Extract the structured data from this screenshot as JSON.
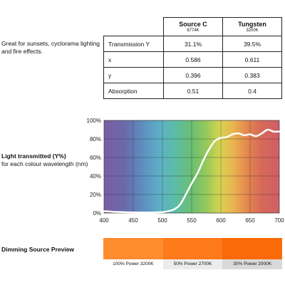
{
  "description": "Great for sunsets, cyclorama lighting and fire effects.",
  "spec_table": {
    "sources": [
      {
        "name": "Source C",
        "temp": "6774K"
      },
      {
        "name": "Tungsten",
        "temp": "3200K"
      }
    ],
    "rows": [
      {
        "label": "Transmission Y",
        "values": [
          "31.1%",
          "39.5%"
        ]
      },
      {
        "label": "x",
        "values": [
          "0.586",
          "0.611"
        ]
      },
      {
        "label": "y",
        "values": [
          "0.396",
          "0.383"
        ]
      },
      {
        "label": "Absorption",
        "values": [
          "0.51",
          "0.4"
        ]
      }
    ]
  },
  "chart_caption": {
    "title": "Light transmitted (Y%)",
    "subtitle": "for each colour wavelength (nm)"
  },
  "chart_data": {
    "type": "line",
    "title": "",
    "xlabel": "",
    "ylabel": "",
    "xlim": [
      400,
      700
    ],
    "ylim": [
      0,
      100
    ],
    "x_ticks": [
      400,
      450,
      500,
      550,
      600,
      650,
      700
    ],
    "y_ticks": [
      "0%",
      "20%",
      "40%",
      "60%",
      "80%",
      "100%"
    ],
    "grid": true,
    "background": "visible spectrum gradient (violet to red)",
    "line_color": "#ffffff",
    "series": [
      {
        "x": [
          400,
          410,
          420,
          440,
          460,
          480,
          500,
          510,
          520,
          530,
          540,
          550,
          560,
          570,
          580,
          590,
          600,
          610,
          620,
          630,
          640,
          650,
          660,
          670,
          680,
          690,
          700
        ],
        "y": [
          2,
          1.6,
          1.2,
          0.8,
          0.6,
          0.6,
          1,
          2,
          4,
          9,
          20,
          32,
          43,
          57,
          69,
          78,
          81,
          82,
          85,
          86,
          84,
          85,
          83,
          86,
          90,
          88,
          88
        ]
      }
    ]
  },
  "preview": {
    "title": "Dimming Source Preview",
    "swatches": [
      {
        "label": "100% Power 3200K",
        "color": "#ff8c2e",
        "label_bg": "#ffffff"
      },
      {
        "label": "50% Power 2700K",
        "color": "#ff7a1a",
        "label_bg": "#ececec"
      },
      {
        "label": "30% Power 2000K",
        "color": "#fb6a08",
        "label_bg": "#d9d9d9"
      }
    ]
  }
}
